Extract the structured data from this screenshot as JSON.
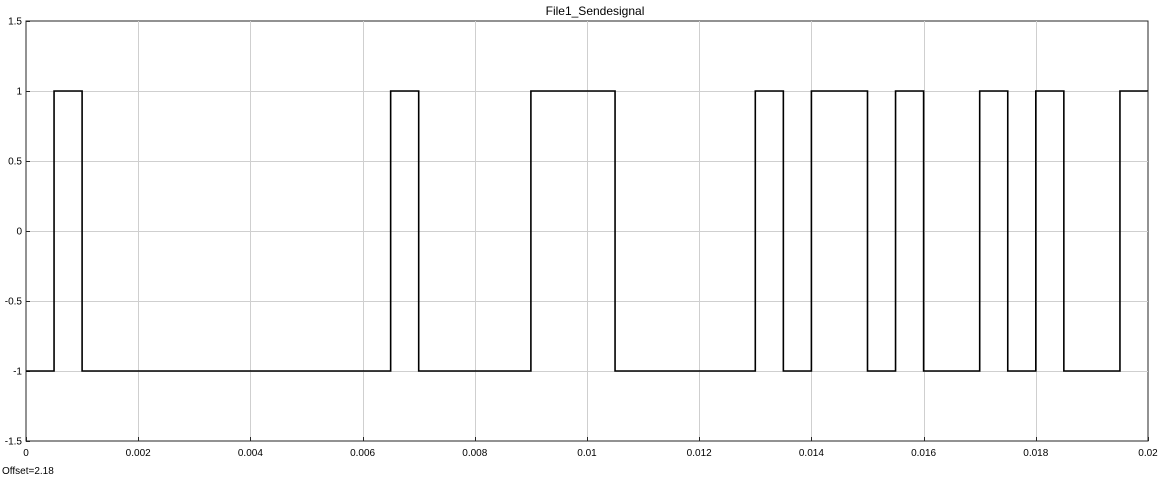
{
  "chart_data": {
    "type": "line",
    "title": "File1_Sendesignal",
    "xlabel": "",
    "ylabel": "",
    "xlim": [
      0,
      0.02
    ],
    "ylim": [
      -1.5,
      1.5
    ],
    "grid": true,
    "xticks": [
      0,
      0.002,
      0.004,
      0.006,
      0.008,
      0.01,
      0.012,
      0.014,
      0.016,
      0.018,
      0.02
    ],
    "xtick_labels": [
      "0",
      "0.002",
      "0.004",
      "0.006",
      "0.008",
      "0.01",
      "0.012",
      "0.014",
      "0.016",
      "0.018",
      "0.02"
    ],
    "yticks": [
      1.5,
      1,
      0.5,
      0,
      -0.5,
      -1,
      -1.5
    ],
    "ytick_labels": [
      "1.5",
      "1",
      "0.5",
      "0",
      "-0.5",
      "-1",
      "-1.5"
    ],
    "series": [
      {
        "step": "post",
        "color": "#000000",
        "x": [
          0,
          0.0005,
          0.001,
          0.0065,
          0.007,
          0.009,
          0.0105,
          0.013,
          0.0135,
          0.014,
          0.015,
          0.0155,
          0.016,
          0.017,
          0.0175,
          0.018,
          0.0185,
          0.0195,
          0.02
        ],
        "y": [
          -1,
          1,
          -1,
          1,
          -1,
          1,
          -1,
          1,
          -1,
          1,
          -1,
          1,
          -1,
          1,
          -1,
          1,
          -1,
          1,
          1
        ]
      }
    ]
  },
  "footer": {
    "offset_label": "Offset=2.18"
  }
}
